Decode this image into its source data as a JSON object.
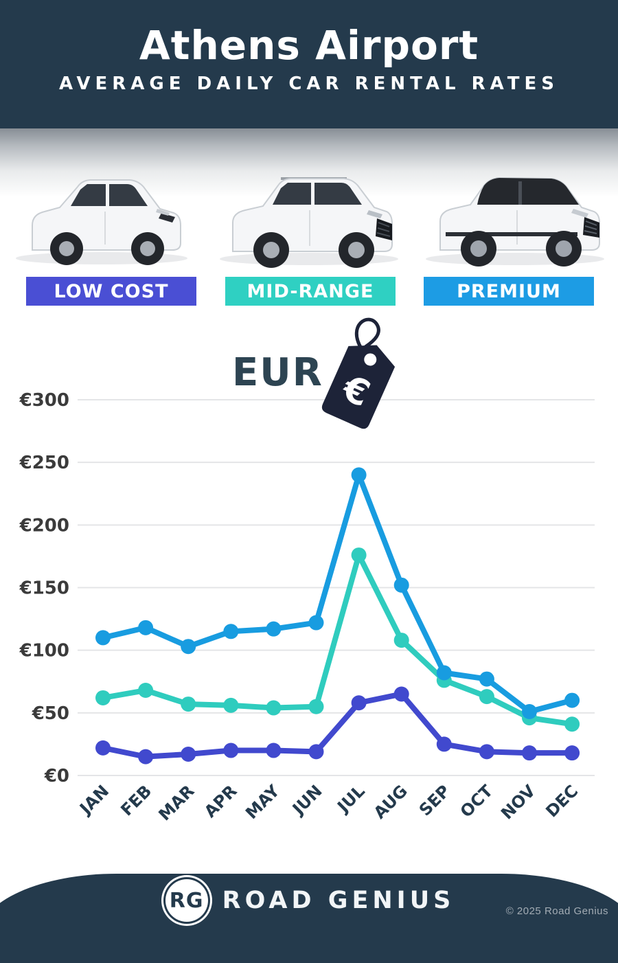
{
  "header": {
    "title": "Athens Airport",
    "subtitle": "AVERAGE DAILY CAR RENTAL RATES"
  },
  "categories_section": {
    "items": [
      {
        "label": "LOW COST",
        "color": "#4a4fd4",
        "car": "compact-hatchback"
      },
      {
        "label": "MID-RANGE",
        "color": "#2fd0c2",
        "car": "mid-size-suv"
      },
      {
        "label": "PREMIUM",
        "color": "#1d9ce4",
        "car": "premium-suv"
      }
    ]
  },
  "currency": {
    "label": "EUR",
    "symbol": "€"
  },
  "chart_data": {
    "type": "line",
    "title": "Athens Airport average daily car rental rates (EUR)",
    "categories": [
      "JAN",
      "FEB",
      "MAR",
      "APR",
      "MAY",
      "JUN",
      "JUL",
      "AUG",
      "SEP",
      "OCT",
      "NOV",
      "DEC"
    ],
    "series": [
      {
        "name": "PREMIUM",
        "color": "#189ce0",
        "values": [
          110,
          118,
          103,
          115,
          117,
          122,
          240,
          152,
          82,
          77,
          51,
          60
        ]
      },
      {
        "name": "MID-RANGE",
        "color": "#2fccbe",
        "values": [
          62,
          68,
          57,
          56,
          54,
          55,
          176,
          108,
          76,
          63,
          46,
          41
        ]
      },
      {
        "name": "LOW COST",
        "color": "#4149ce",
        "values": [
          22,
          15,
          17,
          20,
          20,
          19,
          58,
          65,
          25,
          19,
          18,
          18
        ]
      }
    ],
    "y_ticks": [
      300,
      250,
      200,
      150,
      100,
      50,
      0
    ],
    "y_tick_prefix": "€",
    "ylim": [
      0,
      300
    ],
    "grid": "horizontal",
    "legend": "color-coded category buttons above chart"
  },
  "footer": {
    "logo_initials": "RG",
    "brand": "ROAD GENIUS",
    "copyright": "© 2025 Road Genius"
  }
}
